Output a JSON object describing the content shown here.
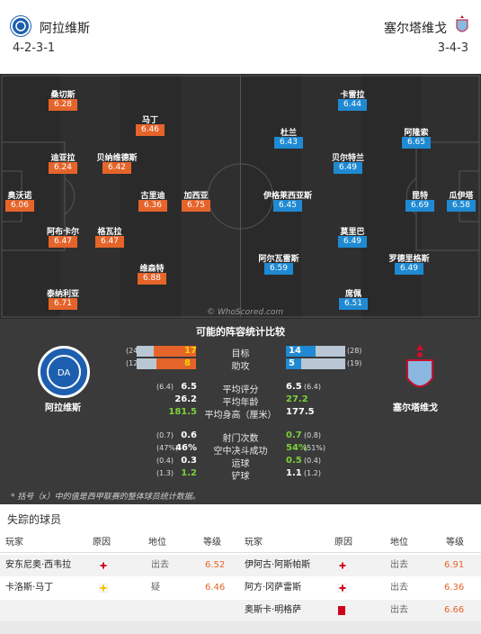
{
  "header": {
    "home_name": "阿拉维斯",
    "home_formation": "4-2-3-1",
    "away_name": "塞尔塔维戈",
    "away_formation": "3-4-3"
  },
  "pitch": {
    "watermark": "© WhoScored.com",
    "home_players": [
      {
        "name": "桑切斯",
        "rating": "6.28"
      },
      {
        "name": "马丁",
        "rating": "6.46"
      },
      {
        "name": "迪亚拉",
        "rating": "6.24"
      },
      {
        "name": "贝纳维德斯",
        "rating": "6.42"
      },
      {
        "name": "古里迪",
        "rating": "6.36"
      },
      {
        "name": "加西亚",
        "rating": "6.75"
      },
      {
        "name": "奥沃诺",
        "rating": "6.06"
      },
      {
        "name": "阿布卡尔",
        "rating": "6.47"
      },
      {
        "name": "格瓦拉",
        "rating": "6.47"
      },
      {
        "name": "维森特",
        "rating": "6.88"
      },
      {
        "name": "泰纳利亚",
        "rating": "6.71"
      }
    ],
    "away_players": [
      {
        "name": "卡雷拉",
        "rating": "6.44"
      },
      {
        "name": "杜兰",
        "rating": "6.43"
      },
      {
        "name": "阿隆索",
        "rating": "6.65"
      },
      {
        "name": "贝尔特兰",
        "rating": "6.49"
      },
      {
        "name": "伊格莱西亚斯",
        "rating": "6.45"
      },
      {
        "name": "昆特",
        "rating": "6.69"
      },
      {
        "name": "瓜伊塔",
        "rating": "6.58"
      },
      {
        "name": "莫里巴",
        "rating": "6.49"
      },
      {
        "name": "阿尔瓦雷斯",
        "rating": "6.59"
      },
      {
        "name": "罗德里格斯",
        "rating": "6.49"
      },
      {
        "name": "席佩",
        "rating": "6.51"
      }
    ]
  },
  "comparison": {
    "title": "可能的阵容统计比较",
    "home_name": "阿拉维斯",
    "away_name": "塞尔塔维戈",
    "bars": [
      {
        "label": "目标",
        "home": "17",
        "home_league": "(24)",
        "away": "14",
        "away_league": "(28)",
        "home_frac": 0.708,
        "away_frac": 0.5
      },
      {
        "label": "助攻",
        "home": "8",
        "home_league": "(12)",
        "away": "5",
        "away_league": "(19)",
        "home_frac": 0.667,
        "away_frac": 0.263
      }
    ],
    "stats": [
      {
        "label": "平均评分",
        "home_sub": "(6.4)",
        "home": "6.5",
        "away": "6.5",
        "away_sub": "(6.4)",
        "home_color": "white",
        "away_color": "white"
      },
      {
        "label": "平均年龄",
        "home_sub": "",
        "home": "26.2",
        "away": "27.2",
        "away_sub": "",
        "home_color": "white",
        "away_color": "green"
      },
      {
        "label": "平均身高（厘米）",
        "home_sub": "",
        "home": "181.5",
        "away": "177.5",
        "away_sub": "",
        "home_color": "green",
        "away_color": "white"
      },
      {
        "label": "射门次数",
        "home_sub": "(0.7)",
        "home": "0.6",
        "away": "0.7",
        "away_sub": "(0.8)",
        "home_color": "white",
        "away_color": "green"
      },
      {
        "label": "空中决斗成功",
        "home_sub": "(47%)",
        "home": "46%",
        "away": "54%",
        "away_sub": "(51%)",
        "home_color": "white",
        "away_color": "green"
      },
      {
        "label": "运球",
        "home_sub": "(0.4)",
        "home": "0.3",
        "away": "0.5",
        "away_sub": "(0.4)",
        "home_color": "white",
        "away_color": "green"
      },
      {
        "label": "铲球",
        "home_sub": "(1.3)",
        "home": "1.2",
        "away": "1.1",
        "away_sub": "(1.2)",
        "home_color": "green",
        "away_color": "white"
      }
    ],
    "footnote": "* 括号（x）中的值是西甲联赛的整体球员统计数据。"
  },
  "missing": {
    "title": "失踪的球员",
    "headers": {
      "player": "玩家",
      "reason": "原因",
      "status": "地位",
      "rating": "等级"
    },
    "home_rows": [
      {
        "player": "安东尼奥·西韦拉",
        "reason_icon": "injury-icon",
        "status": "出去",
        "rating": "6.52"
      },
      {
        "player": "卡洛斯·马丁",
        "reason_icon": "doubt-injury-icon",
        "status": "疑",
        "rating": "6.46"
      }
    ],
    "away_rows": [
      {
        "player": "伊阿古·阿斯帕斯",
        "reason_icon": "injury-icon",
        "status": "出去",
        "rating": "6.91"
      },
      {
        "player": "阿方·冈萨雷斯",
        "reason_icon": "injury-icon",
        "status": "出去",
        "rating": "6.36"
      },
      {
        "player": "奥斯卡·明格萨",
        "reason_icon": "red-card-icon",
        "status": "出去",
        "rating": "6.66"
      }
    ]
  },
  "colors": {
    "home_accent": "#e5642a",
    "away_accent": "#1f8ad3"
  }
}
